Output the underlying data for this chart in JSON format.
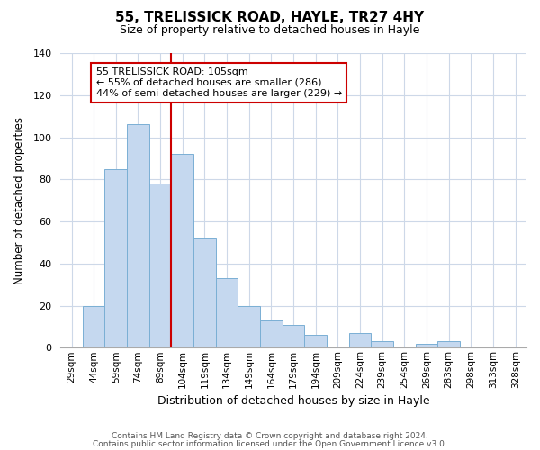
{
  "title": "55, TRELISSICK ROAD, HAYLE, TR27 4HY",
  "subtitle": "Size of property relative to detached houses in Hayle",
  "xlabel": "Distribution of detached houses by size in Hayle",
  "ylabel": "Number of detached properties",
  "bar_labels": [
    "29sqm",
    "44sqm",
    "59sqm",
    "74sqm",
    "89sqm",
    "104sqm",
    "119sqm",
    "134sqm",
    "149sqm",
    "164sqm",
    "179sqm",
    "194sqm",
    "209sqm",
    "224sqm",
    "239sqm",
    "254sqm",
    "269sqm",
    "283sqm",
    "298sqm",
    "313sqm",
    "328sqm"
  ],
  "bar_values": [
    0,
    20,
    85,
    106,
    78,
    92,
    52,
    33,
    20,
    13,
    11,
    6,
    0,
    7,
    3,
    0,
    2,
    3,
    0,
    0,
    0
  ],
  "bar_color": "#c5d8ef",
  "bar_edge_color": "#7aafd4",
  "vline_index": 5,
  "vline_color": "#cc0000",
  "ylim": [
    0,
    140
  ],
  "yticks": [
    0,
    20,
    40,
    60,
    80,
    100,
    120,
    140
  ],
  "annotation_text": "55 TRELISSICK ROAD: 105sqm\n← 55% of detached houses are smaller (286)\n44% of semi-detached houses are larger (229) →",
  "annotation_box_color": "#ffffff",
  "annotation_box_edge": "#cc0000",
  "footer_line1": "Contains HM Land Registry data © Crown copyright and database right 2024.",
  "footer_line2": "Contains public sector information licensed under the Open Government Licence v3.0.",
  "background_color": "#ffffff",
  "grid_color": "#cdd8e8"
}
